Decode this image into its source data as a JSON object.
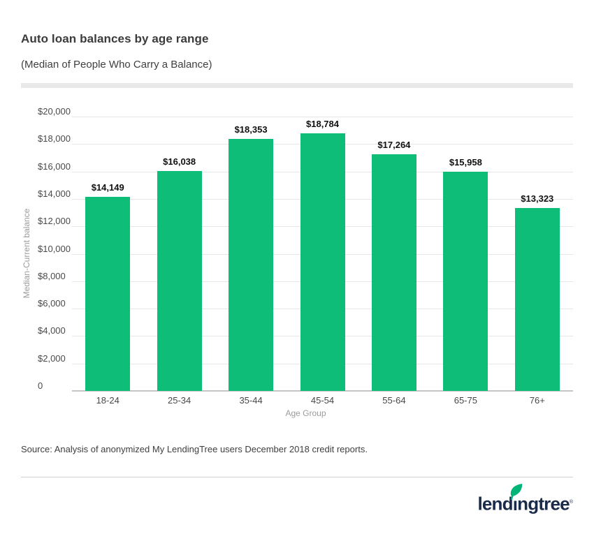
{
  "header": {
    "title": "Auto loan balances by age range",
    "subtitle": "(Median of People Who Carry a Balance)"
  },
  "chart_data": {
    "type": "bar",
    "title": "Auto loan balances by age range",
    "subtitle": "(Median of People Who Carry a Balance)",
    "categories": [
      "18-24",
      "25-34",
      "35-44",
      "45-54",
      "55-64",
      "65-75",
      "76+"
    ],
    "values": [
      14149,
      16038,
      18353,
      18784,
      17264,
      15958,
      13323
    ],
    "value_labels": [
      "$14,149",
      "$16,038",
      "$18,353",
      "$18,784",
      "$17,264",
      "$15,958",
      "$13,323"
    ],
    "xlabel": "Age Group",
    "ylabel": "Median-Current balance",
    "ylim": [
      0,
      20000
    ],
    "ytick_step": 2000,
    "yticks": [
      {
        "value": 20000,
        "label": "$20,000"
      },
      {
        "value": 18000,
        "label": "$18,000"
      },
      {
        "value": 16000,
        "label": "$16,000"
      },
      {
        "value": 14000,
        "label": "$14,000"
      },
      {
        "value": 12000,
        "label": "$12,000"
      },
      {
        "value": 10000,
        "label": "$10,000"
      },
      {
        "value": 8000,
        "label": "$8,000"
      },
      {
        "value": 6000,
        "label": "$6,000"
      },
      {
        "value": 4000,
        "label": "$4,000"
      },
      {
        "value": 2000,
        "label": "$2,000"
      },
      {
        "value": 0,
        "label": "0"
      }
    ],
    "bar_color": "#0ebe78",
    "grid": true,
    "legend": "none"
  },
  "footer": {
    "source": "Source: Analysis of anonymized My LendingTree users December 2018 credit reports.",
    "logo_pre": "lend",
    "logo_i": "ı",
    "logo_post": "ngtree",
    "logo_reg": "®"
  },
  "colors": {
    "bar": "#0ebe78",
    "leaf": "#00b478",
    "logo_text": "#1a2b49",
    "accent_strip": "#e9e9e9"
  }
}
